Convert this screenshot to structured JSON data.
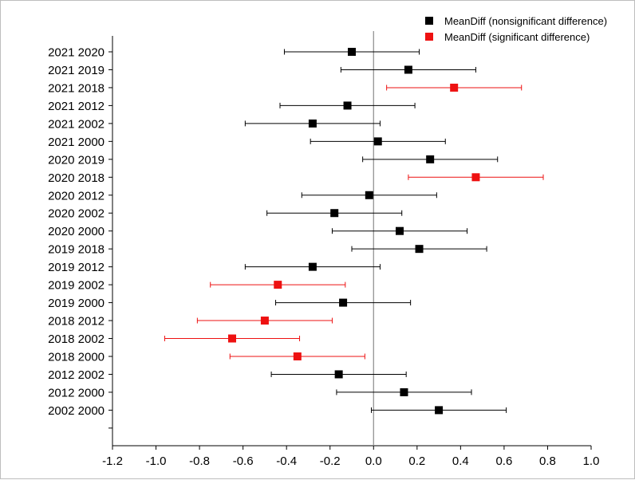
{
  "chart_data": {
    "type": "scatter",
    "title": "",
    "xlabel": "",
    "ylabel": "",
    "xlim": [
      -1.2,
      1.0
    ],
    "x_ticks": [
      "-1.2",
      "-1.0",
      "-0.8",
      "-0.6",
      "-0.4",
      "-0.2",
      "0.0",
      "0.2",
      "0.4",
      "0.6",
      "0.8",
      "1.0"
    ],
    "reference_line_x": 0,
    "legend_position": "top-right",
    "colors": {
      "nonsignificant": "#000000",
      "significant": "#ee1111"
    },
    "series": [
      {
        "name": "MeanDiff (nonsignificant difference)",
        "key": "nonsignificant"
      },
      {
        "name": "MeanDiff (significant difference)",
        "key": "significant"
      }
    ],
    "comparisons": [
      {
        "label": "2021  2020",
        "mean": -0.1,
        "lower": -0.41,
        "upper": 0.21,
        "significant": false
      },
      {
        "label": "2021  2019",
        "mean": 0.16,
        "lower": -0.15,
        "upper": 0.47,
        "significant": false
      },
      {
        "label": "2021  2018",
        "mean": 0.37,
        "lower": 0.06,
        "upper": 0.68,
        "significant": true
      },
      {
        "label": "2021  2012",
        "mean": -0.12,
        "lower": -0.43,
        "upper": 0.19,
        "significant": false
      },
      {
        "label": "2021  2002",
        "mean": -0.28,
        "lower": -0.59,
        "upper": 0.03,
        "significant": false
      },
      {
        "label": "2021  2000",
        "mean": 0.02,
        "lower": -0.29,
        "upper": 0.33,
        "significant": false
      },
      {
        "label": "2020  2019",
        "mean": 0.26,
        "lower": -0.05,
        "upper": 0.57,
        "significant": false
      },
      {
        "label": "2020  2018",
        "mean": 0.47,
        "lower": 0.16,
        "upper": 0.78,
        "significant": true
      },
      {
        "label": "2020  2012",
        "mean": -0.02,
        "lower": -0.33,
        "upper": 0.29,
        "significant": false
      },
      {
        "label": "2020  2002",
        "mean": -0.18,
        "lower": -0.49,
        "upper": 0.13,
        "significant": false
      },
      {
        "label": "2020  2000",
        "mean": 0.12,
        "lower": -0.19,
        "upper": 0.43,
        "significant": false
      },
      {
        "label": "2019  2018",
        "mean": 0.21,
        "lower": -0.1,
        "upper": 0.52,
        "significant": false
      },
      {
        "label": "2019  2012",
        "mean": -0.28,
        "lower": -0.59,
        "upper": 0.03,
        "significant": false
      },
      {
        "label": "2019  2002",
        "mean": -0.44,
        "lower": -0.75,
        "upper": -0.13,
        "significant": true
      },
      {
        "label": "2019  2000",
        "mean": -0.14,
        "lower": -0.45,
        "upper": 0.17,
        "significant": false
      },
      {
        "label": "2018  2012",
        "mean": -0.5,
        "lower": -0.81,
        "upper": -0.19,
        "significant": true
      },
      {
        "label": "2018  2002",
        "mean": -0.65,
        "lower": -0.96,
        "upper": -0.34,
        "significant": true
      },
      {
        "label": "2018  2000",
        "mean": -0.35,
        "lower": -0.66,
        "upper": -0.04,
        "significant": true
      },
      {
        "label": "2012  2002",
        "mean": -0.16,
        "lower": -0.47,
        "upper": 0.15,
        "significant": false
      },
      {
        "label": "2012  2000",
        "mean": 0.14,
        "lower": -0.17,
        "upper": 0.45,
        "significant": false
      },
      {
        "label": "2002  2000",
        "mean": 0.3,
        "lower": -0.01,
        "upper": 0.61,
        "significant": false
      }
    ]
  }
}
